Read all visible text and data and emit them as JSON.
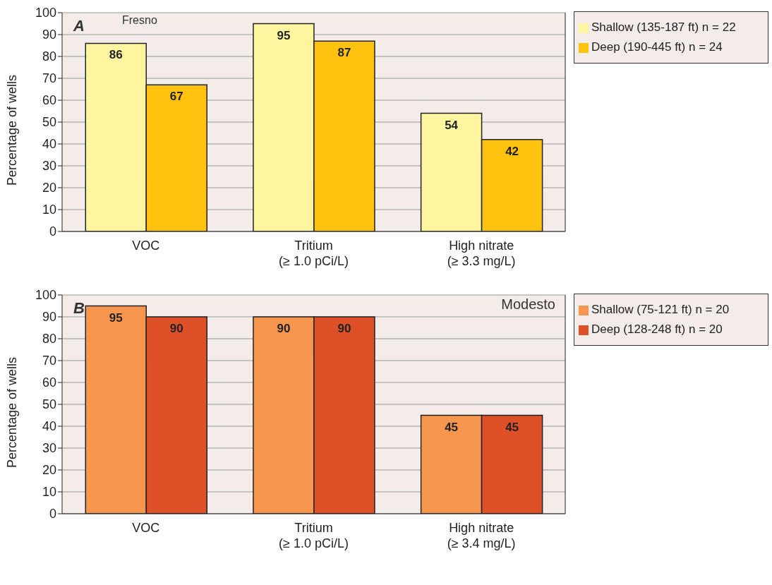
{
  "chart_data": [
    {
      "type": "bar",
      "title": "A",
      "annotations": [
        "Fresno"
      ],
      "ylabel": "Percentage of wells",
      "categories": [
        "VOC",
        "Tritium\n(≥ 1.0 pCi/L)",
        "High nitrate\n(≥ 3.3 mg/L)"
      ],
      "series": [
        {
          "name": "Shallow (135-187 ft) n = 22",
          "color": "#fff5a0",
          "values": [
            86,
            95,
            54
          ]
        },
        {
          "name": "Deep (190-445 ft) n = 24",
          "color": "#ffc20e",
          "values": [
            67,
            87,
            42
          ]
        }
      ],
      "ylim": [
        0,
        100
      ],
      "yticks": [
        0,
        10,
        20,
        30,
        40,
        50,
        60,
        70,
        80,
        90,
        100
      ],
      "grid": "y",
      "legend": "right",
      "data_labels": true
    },
    {
      "type": "bar",
      "title": "B",
      "annotations": [
        "Modesto"
      ],
      "ylabel": "Percentage of wells",
      "categories": [
        "VOC",
        "Tritium\n(≥ 1.0 pCi/L)",
        "High nitrate\n(≥ 3.4 mg/L)"
      ],
      "series": [
        {
          "name": "Shallow (75-121 ft) n = 20",
          "color": "#f7964f",
          "values": [
            95,
            90,
            45
          ]
        },
        {
          "name": "Deep (128-248 ft) n = 20",
          "color": "#de5028",
          "values": [
            90,
            90,
            45
          ]
        }
      ],
      "ylim": [
        0,
        100
      ],
      "yticks": [
        0,
        10,
        20,
        30,
        40,
        50,
        60,
        70,
        80,
        90,
        100
      ],
      "grid": "y",
      "legend": "right",
      "data_labels": true
    }
  ]
}
